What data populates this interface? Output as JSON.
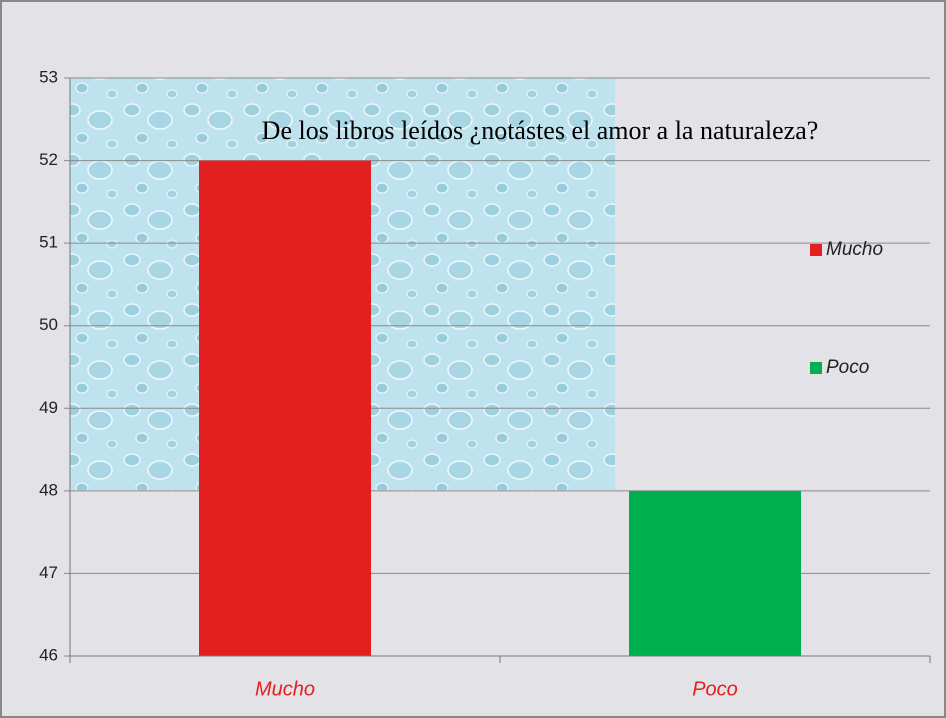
{
  "chart_data": {
    "type": "bar",
    "title": "De los libros leídos ¿notástes el amor a la naturaleza?",
    "categories": [
      "Mucho",
      "Poco"
    ],
    "values": [
      52,
      48
    ],
    "colors": [
      "#e3201f",
      "#00b050"
    ],
    "ylim": [
      46,
      53
    ],
    "yticks": [
      46,
      47,
      48,
      49,
      50,
      51,
      52,
      53
    ],
    "grid": true,
    "legend": "right"
  }
}
